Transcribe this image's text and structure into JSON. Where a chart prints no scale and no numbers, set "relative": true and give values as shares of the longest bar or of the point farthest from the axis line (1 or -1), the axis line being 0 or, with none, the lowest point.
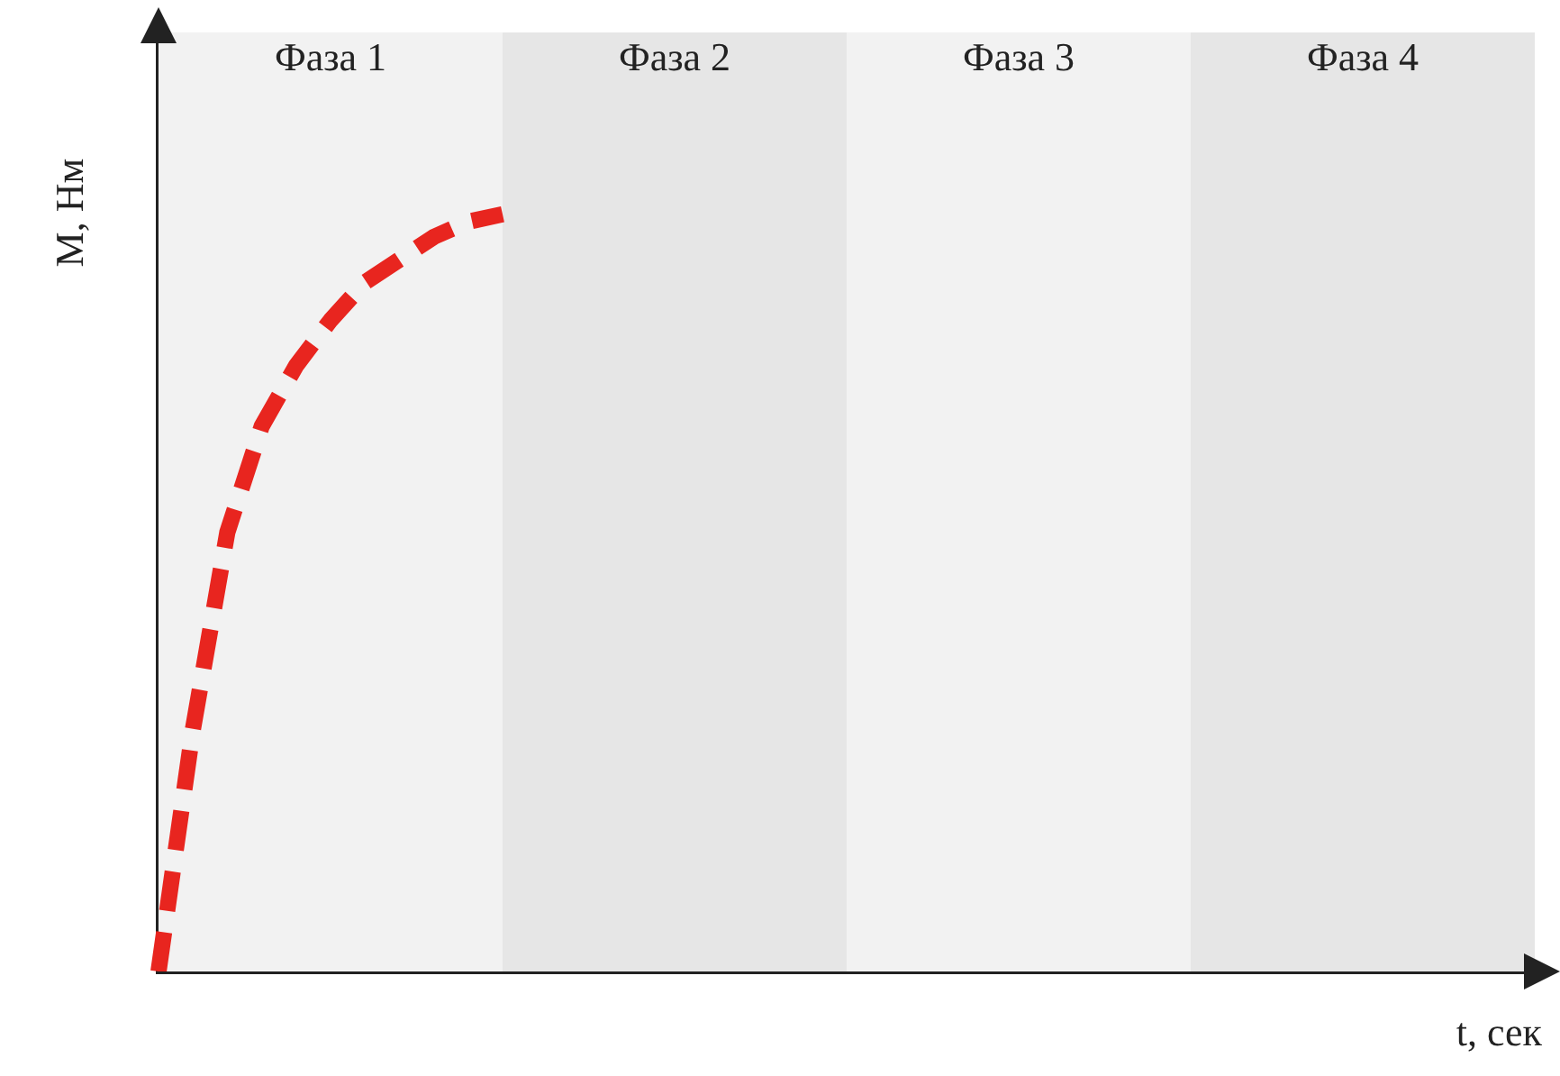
{
  "chart_data": {
    "type": "line",
    "relative": true,
    "xlabel": "t, сек",
    "ylabel": "M, Нм",
    "categories": [
      null,
      null,
      null,
      null,
      null,
      null,
      null,
      null,
      null,
      null,
      null,
      null,
      null,
      null,
      null,
      null,
      null,
      null,
      null,
      null,
      null,
      null,
      null,
      null,
      null,
      null,
      null,
      null,
      null,
      null,
      null,
      null,
      null,
      null,
      null,
      null,
      null,
      null,
      null,
      null,
      null
    ],
    "series": [
      {
        "color": "#e8251f",
        "line_style": "dashed",
        "values": [
          0,
          0.32,
          0.58,
          0.72,
          0.8,
          0.86,
          0.91,
          0.94,
          0.97,
          0.99,
          1,
          null,
          null,
          null,
          null,
          null,
          null,
          null,
          null,
          null,
          null,
          null,
          null,
          null,
          null,
          null,
          null,
          null,
          null,
          null,
          null,
          null,
          null,
          null,
          null,
          null,
          null,
          null,
          null,
          null,
          null
        ]
      }
    ],
    "annotations": [
      "Фаза 1",
      "Фаза 2",
      "Фаза 3",
      "Фаза 4"
    ],
    "grid": false,
    "legend": false,
    "marker": "none"
  }
}
